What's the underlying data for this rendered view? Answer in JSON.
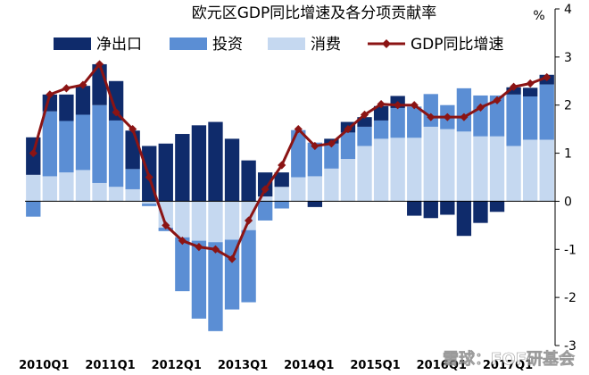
{
  "chart_data": {
    "type": "bar",
    "stacked": true,
    "title": "欧元区GDP同比增速及各分项贡献率",
    "unit": "%",
    "ylim": [
      -3,
      4
    ],
    "yticks": [
      -3,
      -2,
      -1,
      0,
      1,
      2,
      3,
      4
    ],
    "grid": false,
    "legend_position": "top",
    "categories": [
      "2010Q1",
      "2010Q2",
      "2010Q3",
      "2010Q4",
      "2011Q1",
      "2011Q2",
      "2011Q3",
      "2011Q4",
      "2012Q1",
      "2012Q2",
      "2012Q3",
      "2012Q4",
      "2013Q1",
      "2013Q2",
      "2013Q3",
      "2013Q4",
      "2014Q1",
      "2014Q2",
      "2014Q3",
      "2014Q4",
      "2015Q1",
      "2015Q2",
      "2015Q3",
      "2015Q4",
      "2016Q1",
      "2016Q2",
      "2016Q3",
      "2016Q4",
      "2017Q1",
      "2017Q2",
      "2017Q3",
      "2017Q4"
    ],
    "x_tick_labels": [
      "2010Q1",
      "2011Q1",
      "2012Q1",
      "2013Q1",
      "2014Q1",
      "2015Q1",
      "2016Q1",
      "2017Q1"
    ],
    "x_tick_indices": [
      0,
      4,
      8,
      12,
      16,
      20,
      24,
      28
    ],
    "series": [
      {
        "name": "消费",
        "kind": "bar",
        "color": "#c5d8f0",
        "values": [
          0.55,
          0.52,
          0.6,
          0.65,
          0.38,
          0.3,
          0.25,
          -0.05,
          -0.55,
          -0.75,
          -0.82,
          -0.85,
          -0.8,
          -0.6,
          0.1,
          0.3,
          0.5,
          0.52,
          0.68,
          0.88,
          1.15,
          1.3,
          1.32,
          1.32,
          1.55,
          1.5,
          1.45,
          1.35,
          1.35,
          1.15,
          1.28,
          1.28
        ]
      },
      {
        "name": "投资",
        "kind": "bar",
        "color": "#5b8ed4",
        "values": [
          -0.32,
          1.35,
          1.07,
          1.15,
          1.62,
          1.38,
          0.42,
          -0.05,
          -0.07,
          -1.12,
          -1.62,
          -1.85,
          -1.45,
          -1.5,
          -0.4,
          -0.15,
          0.98,
          0.7,
          0.52,
          0.55,
          0.4,
          0.38,
          0.62,
          0.65,
          0.68,
          0.5,
          0.9,
          0.85,
          0.85,
          1.07,
          0.9,
          1.15
        ]
      },
      {
        "name": "净出口",
        "kind": "bar",
        "color": "#0f2b6b",
        "values": [
          0.78,
          0.35,
          0.55,
          0.6,
          0.85,
          0.82,
          0.8,
          1.15,
          1.2,
          1.4,
          1.58,
          1.65,
          1.3,
          0.85,
          0.5,
          0.3,
          0.0,
          -0.12,
          0.1,
          0.22,
          0.2,
          0.3,
          0.25,
          -0.3,
          -0.35,
          -0.28,
          -0.72,
          -0.45,
          -0.22,
          0.15,
          0.18,
          0.2
        ]
      },
      {
        "name": "GDP同比增速",
        "kind": "line",
        "color": "#8b1414",
        "values": [
          1.0,
          2.22,
          2.35,
          2.42,
          2.85,
          1.85,
          1.5,
          0.5,
          -0.5,
          -0.82,
          -0.95,
          -1.0,
          -1.2,
          -0.4,
          0.25,
          0.75,
          1.5,
          1.15,
          1.2,
          1.5,
          1.8,
          2.02,
          2.0,
          2.0,
          1.75,
          1.75,
          1.75,
          1.95,
          2.1,
          2.38,
          2.45,
          2.58
        ]
      }
    ]
  },
  "watermark": "雪球：FOF研基会"
}
